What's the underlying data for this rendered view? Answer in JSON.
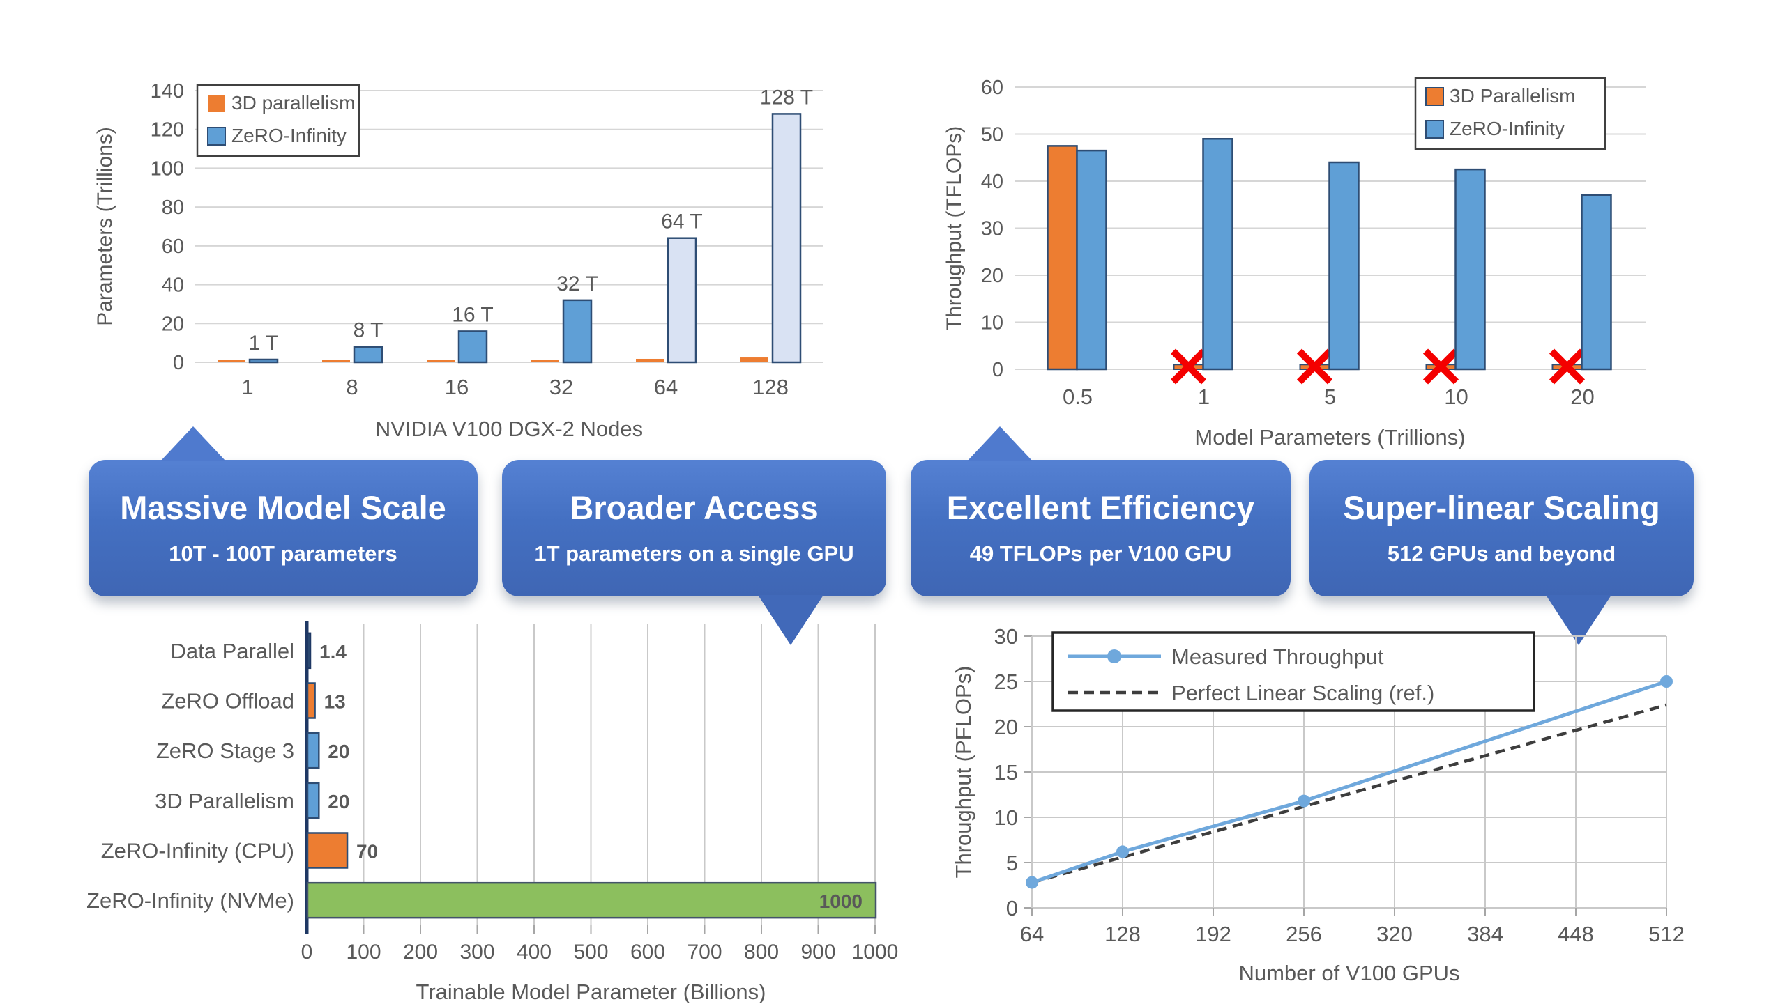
{
  "chart_data": [
    {
      "id": "model_scale",
      "type": "bar",
      "title": "",
      "xlabel": "NVIDIA V100 DGX-2 Nodes",
      "ylabel": "Parameters (Trillions)",
      "categories": [
        "1",
        "8",
        "16",
        "32",
        "64",
        "128"
      ],
      "ylim": [
        0,
        140
      ],
      "ytick_step": 20,
      "grid": "horizontal",
      "legend_position": "top-left",
      "series": [
        {
          "name": "3D parallelism",
          "color": "#ED7D31",
          "values": [
            0.7,
            0.8,
            1,
            1.2,
            1.8,
            2.5
          ]
        },
        {
          "name": "ZeRO-Infinity",
          "color": "#5F9FD6",
          "border": "#2E4D74",
          "values": [
            1,
            8,
            16,
            32,
            64,
            128
          ],
          "bar_colors": [
            "#5F9FD6",
            "#5F9FD6",
            "#5F9FD6",
            "#5F9FD6",
            "#D9E2F3",
            "#D9E2F3"
          ],
          "bar_labels": [
            "1 T",
            "8 T",
            "16 T",
            "32 T",
            "64 T",
            "128 T"
          ]
        }
      ]
    },
    {
      "id": "efficiency",
      "type": "bar",
      "title": "",
      "xlabel": "Model Parameters (Trillions)",
      "ylabel": "Throughput (TFLOPs)",
      "categories": [
        "0.5",
        "1",
        "5",
        "10",
        "20"
      ],
      "ylim": [
        0,
        60
      ],
      "ytick_step": 10,
      "grid": "horizontal",
      "legend_position": "top-right",
      "series": [
        {
          "name": "3D Parallelism",
          "color": "#ED7D31",
          "border": "#2E4D74",
          "values": [
            47.5,
            null,
            null,
            null,
            null
          ],
          "failed_value_stub": 1,
          "failed_marker": "red-x",
          "failed_marker_color": "#F40000"
        },
        {
          "name": "ZeRO-Infinity",
          "color": "#5F9FD6",
          "border": "#2E4D74",
          "values": [
            46.5,
            49,
            44,
            42.5,
            37
          ]
        }
      ]
    },
    {
      "id": "trainable_params",
      "type": "bar-horizontal",
      "title": "",
      "xlabel": "Trainable Model Parameter (Billions)",
      "categories": [
        "Data Parallel",
        "ZeRO Offload",
        "ZeRO Stage 3",
        "3D Parallelism",
        "ZeRO-Infinity (CPU)",
        "ZeRO-Infinity (NVMe)"
      ],
      "values": [
        1.4,
        13,
        20,
        20,
        70,
        1000
      ],
      "value_labels": [
        "1.4",
        "13",
        "20",
        "20",
        "70",
        "1000"
      ],
      "bar_colors": [
        "#2E4D74",
        "#ED7D31",
        "#5F9FD6",
        "#5F9FD6",
        "#ED7D31",
        "#8CBF5E"
      ],
      "bar_borders": [
        "#1F3864",
        "#2E4D74",
        "#2E4D74",
        "#2E4D74",
        "#2E4D74",
        "#44546A"
      ],
      "xlim": [
        0,
        1000
      ],
      "xtick_step": 100,
      "grid": "vertical"
    },
    {
      "id": "scaling",
      "type": "line",
      "title": "",
      "xlabel": "Number of V100 GPUs",
      "ylabel": "Throughput (PFLOPs)",
      "xticks": [
        64,
        128,
        192,
        256,
        320,
        384,
        448,
        512
      ],
      "ylim": [
        0,
        30
      ],
      "ytick_step": 5,
      "grid": "both",
      "legend_position": "top-left",
      "series": [
        {
          "name": "Measured Throughput",
          "color": "#6FA8DC",
          "style": "solid",
          "marker": "circle",
          "x": [
            64,
            128,
            256,
            512
          ],
          "y": [
            2.8,
            6.2,
            11.8,
            25
          ]
        },
        {
          "name": "Perfect Linear Scaling (ref.)",
          "color": "#3D3D3D",
          "style": "dashed",
          "x": [
            64,
            512
          ],
          "y": [
            2.8,
            22.4
          ]
        }
      ]
    }
  ],
  "callouts": [
    {
      "title": "Massive Model Scale",
      "subtitle": "10T - 100T parameters",
      "pointer": "up"
    },
    {
      "title": "Broader Access",
      "subtitle": "1T parameters on a single GPU",
      "pointer": "down"
    },
    {
      "title": "Excellent Efficiency",
      "subtitle": "49 TFLOPs per V100 GPU",
      "pointer": "up"
    },
    {
      "title": "Super-linear Scaling",
      "subtitle": "512 GPUs and beyond",
      "pointer": "down"
    }
  ],
  "colors": {
    "callout_bg_top": "#5581D3",
    "callout_bg_bottom": "#3F66B4",
    "callout_text": "#FFFFFF",
    "axis_text": "#595959",
    "gridline": "#D6D6D6",
    "legend_border": "#404040",
    "navy_axis": "#1F3864",
    "red_x": "#F40000"
  }
}
